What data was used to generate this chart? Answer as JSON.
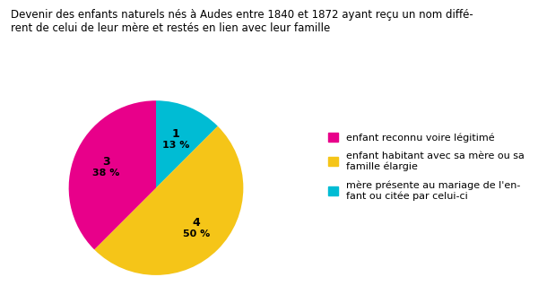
{
  "title_line1": "Devenir des enfants naturels nés à Audes entre 1840 et 1872 ayant reçu un nom diffé-",
  "title_line2": "rent de celui de leur mère et restés en lien avec leur famille",
  "slices": [
    1,
    4,
    3
  ],
  "percentages": [
    "13 %",
    "50 %",
    "38 %"
  ],
  "counts": [
    "1",
    "4",
    "3"
  ],
  "colors": [
    "#00BCD4",
    "#F5C518",
    "#E8008A"
  ],
  "legend_labels": [
    "enfant reconnu voire légitimé",
    "enfant habitant avec sa mère ou sa\nfamille élargie",
    "mère présente au mariage de l'en-\nfant ou citée par celui-ci"
  ],
  "legend_colors": [
    "#E8008A",
    "#F5C518",
    "#00BCD4"
  ],
  "startangle": 90,
  "background_color": "#ffffff",
  "label_radii": [
    0.6,
    0.65,
    0.62
  ]
}
